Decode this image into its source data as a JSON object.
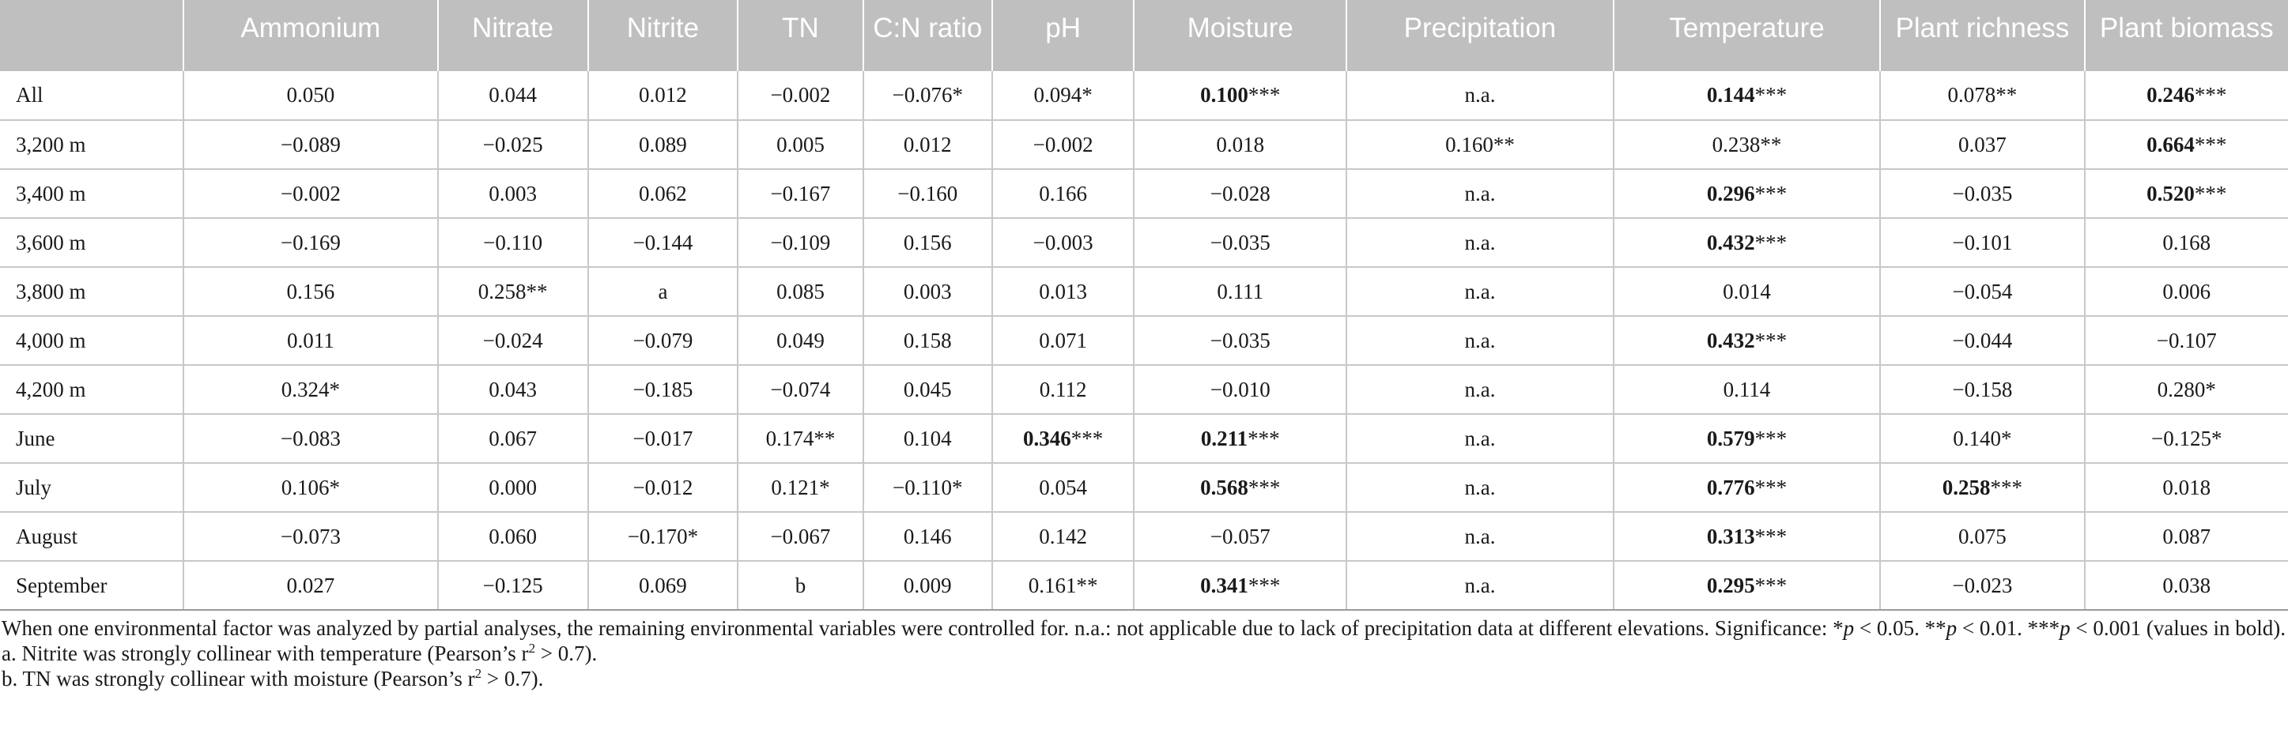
{
  "table": {
    "columns": [
      "",
      "Ammonium",
      "Nitrate",
      "Nitrite",
      "TN",
      "C:N ratio",
      "pH",
      "Moisture",
      "Precipitation",
      "Temperature",
      "Plant richness",
      "Plant biomass"
    ],
    "rows": [
      {
        "label": "All",
        "cells": [
          {
            "v": "0.050",
            "s": ""
          },
          {
            "v": "0.044",
            "s": ""
          },
          {
            "v": "0.012",
            "s": ""
          },
          {
            "v": "−0.002",
            "s": ""
          },
          {
            "v": "−0.076",
            "s": "*"
          },
          {
            "v": "0.094",
            "s": "*"
          },
          {
            "v": "0.100",
            "s": "***",
            "b": true
          },
          {
            "v": "n.a.",
            "s": ""
          },
          {
            "v": "0.144",
            "s": "***",
            "b": true
          },
          {
            "v": "0.078",
            "s": "**"
          },
          {
            "v": "0.246",
            "s": "***",
            "b": true
          }
        ]
      },
      {
        "label": "3,200 m",
        "cells": [
          {
            "v": "−0.089",
            "s": ""
          },
          {
            "v": "−0.025",
            "s": ""
          },
          {
            "v": "0.089",
            "s": ""
          },
          {
            "v": "0.005",
            "s": ""
          },
          {
            "v": "0.012",
            "s": ""
          },
          {
            "v": "−0.002",
            "s": ""
          },
          {
            "v": "0.018",
            "s": ""
          },
          {
            "v": "0.160",
            "s": "**"
          },
          {
            "v": "0.238",
            "s": "**"
          },
          {
            "v": "0.037",
            "s": ""
          },
          {
            "v": "0.664",
            "s": "***",
            "b": true
          }
        ]
      },
      {
        "label": "3,400 m",
        "cells": [
          {
            "v": "−0.002",
            "s": ""
          },
          {
            "v": "0.003",
            "s": ""
          },
          {
            "v": "0.062",
            "s": ""
          },
          {
            "v": "−0.167",
            "s": ""
          },
          {
            "v": "−0.160",
            "s": ""
          },
          {
            "v": "0.166",
            "s": ""
          },
          {
            "v": "−0.028",
            "s": ""
          },
          {
            "v": "n.a.",
            "s": ""
          },
          {
            "v": "0.296",
            "s": "***",
            "b": true
          },
          {
            "v": "−0.035",
            "s": ""
          },
          {
            "v": "0.520",
            "s": "***",
            "b": true
          }
        ]
      },
      {
        "label": "3,600 m",
        "cells": [
          {
            "v": "−0.169",
            "s": ""
          },
          {
            "v": "−0.110",
            "s": ""
          },
          {
            "v": "−0.144",
            "s": ""
          },
          {
            "v": "−0.109",
            "s": ""
          },
          {
            "v": "0.156",
            "s": ""
          },
          {
            "v": "−0.003",
            "s": ""
          },
          {
            "v": "−0.035",
            "s": ""
          },
          {
            "v": "n.a.",
            "s": ""
          },
          {
            "v": "0.432",
            "s": "***",
            "b": true
          },
          {
            "v": "−0.101",
            "s": ""
          },
          {
            "v": "0.168",
            "s": ""
          }
        ]
      },
      {
        "label": "3,800 m",
        "cells": [
          {
            "v": "0.156",
            "s": ""
          },
          {
            "v": "0.258",
            "s": "**"
          },
          {
            "v": "a",
            "s": ""
          },
          {
            "v": "0.085",
            "s": ""
          },
          {
            "v": "0.003",
            "s": ""
          },
          {
            "v": "0.013",
            "s": ""
          },
          {
            "v": "0.111",
            "s": ""
          },
          {
            "v": "n.a.",
            "s": ""
          },
          {
            "v": "0.014",
            "s": ""
          },
          {
            "v": "−0.054",
            "s": ""
          },
          {
            "v": "0.006",
            "s": ""
          }
        ]
      },
      {
        "label": "4,000 m",
        "cells": [
          {
            "v": "0.011",
            "s": ""
          },
          {
            "v": "−0.024",
            "s": ""
          },
          {
            "v": "−0.079",
            "s": ""
          },
          {
            "v": "0.049",
            "s": ""
          },
          {
            "v": "0.158",
            "s": ""
          },
          {
            "v": "0.071",
            "s": ""
          },
          {
            "v": "−0.035",
            "s": ""
          },
          {
            "v": "n.a.",
            "s": ""
          },
          {
            "v": "0.432",
            "s": "***",
            "b": true
          },
          {
            "v": "−0.044",
            "s": ""
          },
          {
            "v": "−0.107",
            "s": ""
          }
        ]
      },
      {
        "label": "4,200 m",
        "cells": [
          {
            "v": "0.324",
            "s": "*"
          },
          {
            "v": "0.043",
            "s": ""
          },
          {
            "v": "−0.185",
            "s": ""
          },
          {
            "v": "−0.074",
            "s": ""
          },
          {
            "v": "0.045",
            "s": ""
          },
          {
            "v": "0.112",
            "s": ""
          },
          {
            "v": "−0.010",
            "s": ""
          },
          {
            "v": "n.a.",
            "s": ""
          },
          {
            "v": "0.114",
            "s": ""
          },
          {
            "v": "−0.158",
            "s": ""
          },
          {
            "v": "0.280",
            "s": "*"
          }
        ]
      },
      {
        "label": "June",
        "cells": [
          {
            "v": "−0.083",
            "s": ""
          },
          {
            "v": "0.067",
            "s": ""
          },
          {
            "v": "−0.017",
            "s": ""
          },
          {
            "v": "0.174",
            "s": "**"
          },
          {
            "v": "0.104",
            "s": ""
          },
          {
            "v": "0.346",
            "s": "***",
            "b": true
          },
          {
            "v": "0.211",
            "s": "***",
            "b": true
          },
          {
            "v": "n.a.",
            "s": ""
          },
          {
            "v": "0.579",
            "s": "***",
            "b": true
          },
          {
            "v": "0.140",
            "s": "*"
          },
          {
            "v": "−0.125",
            "s": "*"
          }
        ]
      },
      {
        "label": "July",
        "cells": [
          {
            "v": "0.106",
            "s": "*"
          },
          {
            "v": "0.000",
            "s": ""
          },
          {
            "v": "−0.012",
            "s": ""
          },
          {
            "v": "0.121",
            "s": "*"
          },
          {
            "v": "−0.110",
            "s": "*"
          },
          {
            "v": "0.054",
            "s": ""
          },
          {
            "v": "0.568",
            "s": "***",
            "b": true
          },
          {
            "v": "n.a.",
            "s": ""
          },
          {
            "v": "0.776",
            "s": "***",
            "b": true
          },
          {
            "v": "0.258",
            "s": "***",
            "b": true
          },
          {
            "v": "0.018",
            "s": ""
          }
        ]
      },
      {
        "label": "August",
        "cells": [
          {
            "v": "−0.073",
            "s": ""
          },
          {
            "v": "0.060",
            "s": ""
          },
          {
            "v": "−0.170",
            "s": "*"
          },
          {
            "v": "−0.067",
            "s": ""
          },
          {
            "v": "0.146",
            "s": ""
          },
          {
            "v": "0.142",
            "s": ""
          },
          {
            "v": "−0.057",
            "s": ""
          },
          {
            "v": "n.a.",
            "s": ""
          },
          {
            "v": "0.313",
            "s": "***",
            "b": true
          },
          {
            "v": "0.075",
            "s": ""
          },
          {
            "v": "0.087",
            "s": ""
          }
        ]
      },
      {
        "label": "September",
        "cells": [
          {
            "v": "0.027",
            "s": ""
          },
          {
            "v": "−0.125",
            "s": ""
          },
          {
            "v": "0.069",
            "s": ""
          },
          {
            "v": "b",
            "s": ""
          },
          {
            "v": "0.009",
            "s": ""
          },
          {
            "v": "0.161",
            "s": "**"
          },
          {
            "v": "0.341",
            "s": "***",
            "b": true
          },
          {
            "v": "n.a.",
            "s": ""
          },
          {
            "v": "0.295",
            "s": "***",
            "b": true
          },
          {
            "v": "−0.023",
            "s": ""
          },
          {
            "v": "0.038",
            "s": ""
          }
        ]
      }
    ]
  },
  "notes": {
    "line1_a": "When one environmental factor was analyzed by partial analyses, the remaining environmental variables were controlled for. n.a.: not applicable due to lack of precipitation data at different elevations. Significance: *",
    "p": "p",
    "line1_b": " < 0.05. **",
    "line1_c": " < 0.01. ***",
    "line1_d": " < 0.001 (values in bold).",
    "line2_a": "a. Nitrite was strongly collinear with temperature (Pearson’s r",
    "sq": "2",
    "line2_b": " > 0.7).",
    "line3_a": "b. TN was strongly collinear with moisture (Pearson’s r",
    "line3_b": " > 0.7)."
  }
}
